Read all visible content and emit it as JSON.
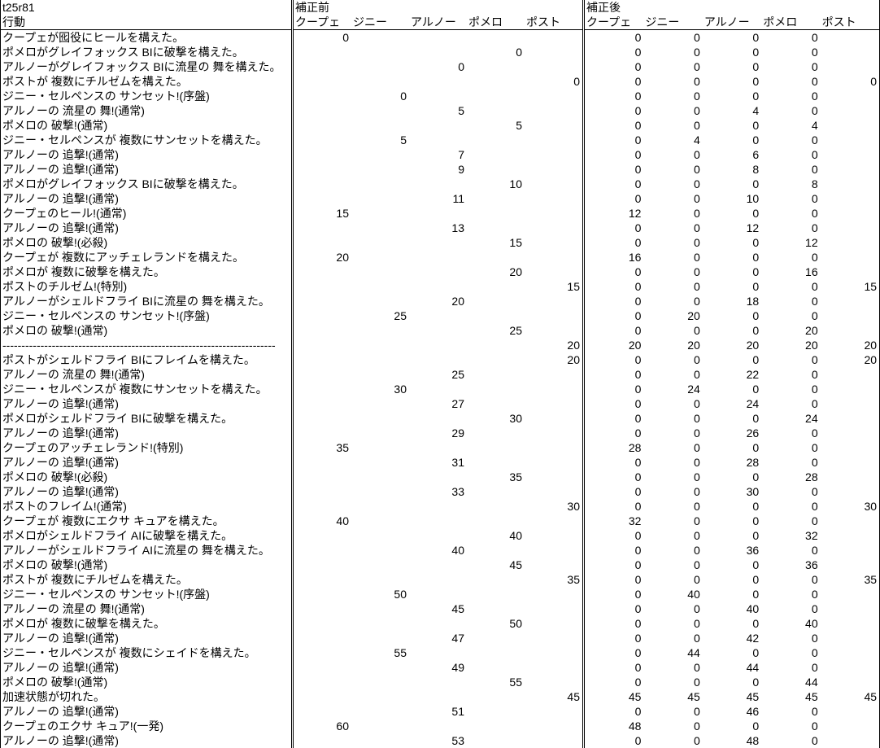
{
  "meta": {
    "sheet_id": "t25r81",
    "action_header": "行動",
    "pre_header": "補正前",
    "post_header": "補正後"
  },
  "colors": {
    "background": "#ffffff",
    "text": "#000000",
    "border": "#000000"
  },
  "columns": [
    "クープェ",
    "ジニー",
    "アルノー",
    "ポメロ",
    "ポスト"
  ],
  "rows": [
    {
      "action": "クープェが囮役にヒールを構えた。",
      "pre": [
        "0",
        "",
        "",
        "",
        ""
      ],
      "post": [
        "0",
        "0",
        "0",
        "0",
        ""
      ]
    },
    {
      "action": "ポメロがグレイフォックス BIに破撃を構えた。",
      "pre": [
        "",
        "",
        "",
        "0",
        ""
      ],
      "post": [
        "0",
        "0",
        "0",
        "0",
        ""
      ]
    },
    {
      "action": "アルノーがグレイフォックス BIに流星の 舞を構えた。",
      "pre": [
        "",
        "",
        "0",
        "",
        ""
      ],
      "post": [
        "0",
        "0",
        "0",
        "0",
        ""
      ]
    },
    {
      "action": "ポストが 複数にチルゼムを構えた。",
      "pre": [
        "",
        "",
        "",
        "",
        "0"
      ],
      "post": [
        "0",
        "0",
        "0",
        "0",
        "0"
      ]
    },
    {
      "action": "ジニー・セルペンスの サンセット!(序盤)",
      "pre": [
        "",
        "0",
        "",
        "",
        ""
      ],
      "post": [
        "0",
        "0",
        "0",
        "0",
        ""
      ]
    },
    {
      "action": "アルノーの 流星の 舞!(通常)",
      "pre": [
        "",
        "",
        "5",
        "",
        ""
      ],
      "post": [
        "0",
        "0",
        "4",
        "0",
        ""
      ]
    },
    {
      "action": "ポメロの 破撃!(通常)",
      "pre": [
        "",
        "",
        "",
        "5",
        ""
      ],
      "post": [
        "0",
        "0",
        "0",
        "4",
        ""
      ]
    },
    {
      "action": "ジニー・セルペンスが 複数にサンセットを構えた。",
      "pre": [
        "",
        "5",
        "",
        "",
        ""
      ],
      "post": [
        "0",
        "4",
        "0",
        "0",
        ""
      ]
    },
    {
      "action": "アルノーの 追撃!(通常)",
      "pre": [
        "",
        "",
        "7",
        "",
        ""
      ],
      "post": [
        "0",
        "0",
        "6",
        "0",
        ""
      ]
    },
    {
      "action": "アルノーの 追撃!(通常)",
      "pre": [
        "",
        "",
        "9",
        "",
        ""
      ],
      "post": [
        "0",
        "0",
        "8",
        "0",
        ""
      ]
    },
    {
      "action": "ポメロがグレイフォックス BIに破撃を構えた。",
      "pre": [
        "",
        "",
        "",
        "10",
        ""
      ],
      "post": [
        "0",
        "0",
        "0",
        "8",
        ""
      ]
    },
    {
      "action": "アルノーの 追撃!(通常)",
      "pre": [
        "",
        "",
        "11",
        "",
        ""
      ],
      "post": [
        "0",
        "0",
        "10",
        "0",
        ""
      ]
    },
    {
      "action": "クープェのヒール!(通常)",
      "pre": [
        "15",
        "",
        "",
        "",
        ""
      ],
      "post": [
        "12",
        "0",
        "0",
        "0",
        ""
      ]
    },
    {
      "action": "アルノーの 追撃!(通常)",
      "pre": [
        "",
        "",
        "13",
        "",
        ""
      ],
      "post": [
        "0",
        "0",
        "12",
        "0",
        ""
      ]
    },
    {
      "action": "ポメロの 破撃!(必殺)",
      "pre": [
        "",
        "",
        "",
        "15",
        ""
      ],
      "post": [
        "0",
        "0",
        "0",
        "12",
        ""
      ]
    },
    {
      "action": "クープェが 複数にアッチェレランドを構えた。",
      "pre": [
        "20",
        "",
        "",
        "",
        ""
      ],
      "post": [
        "16",
        "0",
        "0",
        "0",
        ""
      ]
    },
    {
      "action": "ポメロが 複数に破撃を構えた。",
      "pre": [
        "",
        "",
        "",
        "20",
        ""
      ],
      "post": [
        "0",
        "0",
        "0",
        "16",
        ""
      ]
    },
    {
      "action": "ポストのチルゼム!(特別)",
      "pre": [
        "",
        "",
        "",
        "",
        "15"
      ],
      "post": [
        "0",
        "0",
        "0",
        "0",
        "15"
      ]
    },
    {
      "action": "アルノーがシェルドフライ BIに流星の 舞を構えた。",
      "pre": [
        "",
        "",
        "20",
        "",
        ""
      ],
      "post": [
        "0",
        "0",
        "18",
        "0",
        ""
      ]
    },
    {
      "action": "ジニー・セルペンスの サンセット!(序盤)",
      "pre": [
        "",
        "25",
        "",
        "",
        ""
      ],
      "post": [
        "0",
        "20",
        "0",
        "0",
        ""
      ]
    },
    {
      "action": "ポメロの 破撃!(通常)",
      "pre": [
        "",
        "",
        "",
        "25",
        ""
      ],
      "post": [
        "0",
        "0",
        "0",
        "20",
        ""
      ]
    },
    {
      "action": "------------------------------------------------------------------------",
      "pre": [
        "",
        "",
        "",
        "",
        "20"
      ],
      "post": [
        "20",
        "20",
        "20",
        "20",
        "20"
      ]
    },
    {
      "action": "ポストがシェルドフライ BIにフレイムを構えた。",
      "pre": [
        "",
        "",
        "",
        "",
        "20"
      ],
      "post": [
        "0",
        "0",
        "0",
        "0",
        "20"
      ]
    },
    {
      "action": "アルノーの 流星の 舞!(通常)",
      "pre": [
        "",
        "",
        "25",
        "",
        ""
      ],
      "post": [
        "0",
        "0",
        "22",
        "0",
        ""
      ]
    },
    {
      "action": "ジニー・セルペンスが 複数にサンセットを構えた。",
      "pre": [
        "",
        "30",
        "",
        "",
        ""
      ],
      "post": [
        "0",
        "24",
        "0",
        "0",
        ""
      ]
    },
    {
      "action": "アルノーの 追撃!(通常)",
      "pre": [
        "",
        "",
        "27",
        "",
        ""
      ],
      "post": [
        "0",
        "0",
        "24",
        "0",
        ""
      ]
    },
    {
      "action": "ポメロがシェルドフライ BIに破撃を構えた。",
      "pre": [
        "",
        "",
        "",
        "30",
        ""
      ],
      "post": [
        "0",
        "0",
        "0",
        "24",
        ""
      ]
    },
    {
      "action": "アルノーの 追撃!(通常)",
      "pre": [
        "",
        "",
        "29",
        "",
        ""
      ],
      "post": [
        "0",
        "0",
        "26",
        "0",
        ""
      ]
    },
    {
      "action": "クープェのアッチェレランド!(特別)",
      "pre": [
        "35",
        "",
        "",
        "",
        ""
      ],
      "post": [
        "28",
        "0",
        "0",
        "0",
        ""
      ]
    },
    {
      "action": "アルノーの 追撃!(通常)",
      "pre": [
        "",
        "",
        "31",
        "",
        ""
      ],
      "post": [
        "0",
        "0",
        "28",
        "0",
        ""
      ]
    },
    {
      "action": "ポメロの 破撃!(必殺)",
      "pre": [
        "",
        "",
        "",
        "35",
        ""
      ],
      "post": [
        "0",
        "0",
        "0",
        "28",
        ""
      ]
    },
    {
      "action": "アルノーの 追撃!(通常)",
      "pre": [
        "",
        "",
        "33",
        "",
        ""
      ],
      "post": [
        "0",
        "0",
        "30",
        "0",
        ""
      ]
    },
    {
      "action": "ポストのフレイム!(通常)",
      "pre": [
        "",
        "",
        "",
        "",
        "30"
      ],
      "post": [
        "0",
        "0",
        "0",
        "0",
        "30"
      ]
    },
    {
      "action": "クープェが 複数にエクサ キュアを構えた。",
      "pre": [
        "40",
        "",
        "",
        "",
        ""
      ],
      "post": [
        "32",
        "0",
        "0",
        "0",
        ""
      ]
    },
    {
      "action": "ポメロがシェルドフライ AIに破撃を構えた。",
      "pre": [
        "",
        "",
        "",
        "40",
        ""
      ],
      "post": [
        "0",
        "0",
        "0",
        "32",
        ""
      ]
    },
    {
      "action": "アルノーがシェルドフライ AIに流星の 舞を構えた。",
      "pre": [
        "",
        "",
        "40",
        "",
        ""
      ],
      "post": [
        "0",
        "0",
        "36",
        "0",
        ""
      ]
    },
    {
      "action": "ポメロの 破撃!(通常)",
      "pre": [
        "",
        "",
        "",
        "45",
        ""
      ],
      "post": [
        "0",
        "0",
        "0",
        "36",
        ""
      ]
    },
    {
      "action": "ポストが 複数にチルゼムを構えた。",
      "pre": [
        "",
        "",
        "",
        "",
        "35"
      ],
      "post": [
        "0",
        "0",
        "0",
        "0",
        "35"
      ]
    },
    {
      "action": "ジニー・セルペンスの サンセット!(序盤)",
      "pre": [
        "",
        "50",
        "",
        "",
        ""
      ],
      "post": [
        "0",
        "40",
        "0",
        "0",
        ""
      ]
    },
    {
      "action": "アルノーの 流星の 舞!(通常)",
      "pre": [
        "",
        "",
        "45",
        "",
        ""
      ],
      "post": [
        "0",
        "0",
        "40",
        "0",
        ""
      ]
    },
    {
      "action": "ポメロが 複数に破撃を構えた。",
      "pre": [
        "",
        "",
        "",
        "50",
        ""
      ],
      "post": [
        "0",
        "0",
        "0",
        "40",
        ""
      ]
    },
    {
      "action": "アルノーの 追撃!(通常)",
      "pre": [
        "",
        "",
        "47",
        "",
        ""
      ],
      "post": [
        "0",
        "0",
        "42",
        "0",
        ""
      ]
    },
    {
      "action": "ジニー・セルペンスが 複数にシェイドを構えた。",
      "pre": [
        "",
        "55",
        "",
        "",
        ""
      ],
      "post": [
        "0",
        "44",
        "0",
        "0",
        ""
      ]
    },
    {
      "action": "アルノーの 追撃!(通常)",
      "pre": [
        "",
        "",
        "49",
        "",
        ""
      ],
      "post": [
        "0",
        "0",
        "44",
        "0",
        ""
      ]
    },
    {
      "action": "ポメロの 破撃!(通常)",
      "pre": [
        "",
        "",
        "",
        "55",
        ""
      ],
      "post": [
        "0",
        "0",
        "0",
        "44",
        ""
      ]
    },
    {
      "action": "加速状態が切れた。",
      "pre": [
        "",
        "",
        "",
        "",
        "45"
      ],
      "post": [
        "45",
        "45",
        "45",
        "45",
        "45"
      ]
    },
    {
      "action": "アルノーの 追撃!(通常)",
      "pre": [
        "",
        "",
        "51",
        "",
        ""
      ],
      "post": [
        "0",
        "0",
        "46",
        "0",
        ""
      ]
    },
    {
      "action": "クープェのエクサ キュア!(一発)",
      "pre": [
        "60",
        "",
        "",
        "",
        ""
      ],
      "post": [
        "48",
        "0",
        "0",
        "0",
        ""
      ]
    },
    {
      "action": "アルノーの 追撃!(通常)",
      "pre": [
        "",
        "",
        "53",
        "",
        ""
      ],
      "post": [
        "0",
        "0",
        "48",
        "0",
        ""
      ]
    }
  ]
}
